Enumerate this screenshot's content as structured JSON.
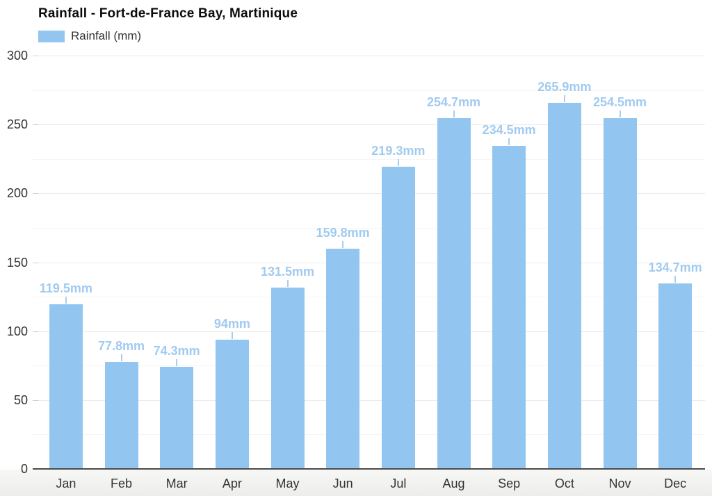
{
  "title": "Rainfall - Fort-de-France Bay, Martinique",
  "legend": {
    "label": "Rainfall (mm)",
    "swatch_color": "#92c6f1"
  },
  "chart_data": {
    "type": "bar",
    "title": "Rainfall - Fort-de-France Bay, Martinique",
    "categories": [
      "Jan",
      "Feb",
      "Mar",
      "Apr",
      "May",
      "Jun",
      "Jul",
      "Aug",
      "Sep",
      "Oct",
      "Nov",
      "Dec"
    ],
    "values": [
      119.5,
      77.8,
      74.3,
      94,
      131.5,
      159.8,
      219.3,
      254.7,
      234.5,
      265.9,
      254.5,
      134.7
    ],
    "bar_labels": [
      "119.5mm",
      "77.8mm",
      "74.3mm",
      "94mm",
      "131.5mm",
      "159.8mm",
      "219.3mm",
      "254.7mm",
      "234.5mm",
      "265.9mm",
      "254.5mm",
      "134.7mm"
    ],
    "unit": "mm",
    "xlabel": "",
    "ylabel": "",
    "ylim": [
      0,
      300
    ],
    "yticks": [
      0,
      50,
      100,
      150,
      200,
      250,
      300
    ],
    "yticks_minor": [
      25,
      75,
      125,
      175,
      225,
      275
    ],
    "grid": true,
    "legend_position": "top-left",
    "legend_entries": [
      "Rainfall (mm)"
    ],
    "colors": {
      "bar": "#92c6f1",
      "bar_label": "#a0cbf0",
      "connector": "#a8cef0",
      "axis_text": "#333333",
      "axis_line": "#4a4a4a",
      "grid_major": "#ebebeb",
      "grid_minor": "#f5f5f4",
      "tick": "#cfcfcf"
    }
  }
}
